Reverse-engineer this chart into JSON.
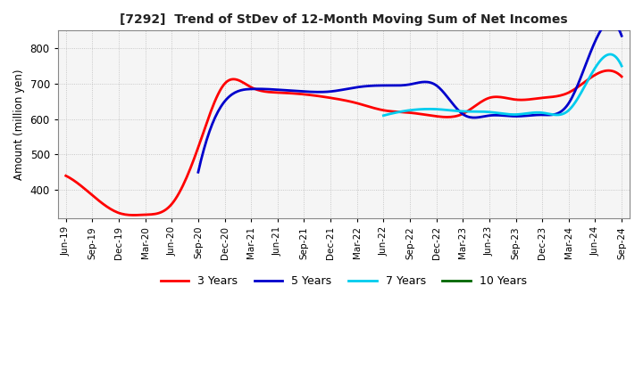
{
  "title": "[7292]  Trend of StDev of 12-Month Moving Sum of Net Incomes",
  "ylabel": "Amount (million yen)",
  "ylim": [
    320,
    850
  ],
  "yticks": [
    400,
    500,
    600,
    700,
    800
  ],
  "background_color": "#ffffff",
  "plot_bg_color": "#f5f5f5",
  "grid_color": "#bbbbbb",
  "line_colors": {
    "3 Years": "#ff0000",
    "5 Years": "#0000cc",
    "7 Years": "#00ccee",
    "10 Years": "#006600"
  },
  "x_labels": [
    "Jun-19",
    "Sep-19",
    "Dec-19",
    "Mar-20",
    "Jun-20",
    "Sep-20",
    "Dec-20",
    "Mar-21",
    "Jun-21",
    "Sep-21",
    "Dec-21",
    "Mar-22",
    "Jun-22",
    "Sep-22",
    "Dec-22",
    "Mar-23",
    "Jun-23",
    "Sep-23",
    "Dec-23",
    "Mar-24",
    "Jun-24",
    "Sep-24"
  ],
  "series": {
    "3 Years": [
      440,
      385,
      335,
      330,
      360,
      520,
      700,
      690,
      675,
      670,
      660,
      645,
      625,
      618,
      608,
      615,
      660,
      655,
      660,
      675,
      725,
      720
    ],
    "5 Years": [
      null,
      null,
      null,
      null,
      null,
      450,
      650,
      685,
      683,
      678,
      678,
      690,
      695,
      698,
      695,
      614,
      610,
      608,
      612,
      645,
      820,
      835
    ],
    "7 Years": [
      null,
      null,
      null,
      null,
      null,
      null,
      null,
      null,
      null,
      null,
      null,
      null,
      610,
      625,
      628,
      622,
      620,
      613,
      618,
      625,
      745,
      750
    ],
    "10 Years": [
      null,
      null,
      null,
      null,
      null,
      null,
      null,
      null,
      null,
      null,
      null,
      null,
      null,
      null,
      null,
      null,
      null,
      null,
      null,
      null,
      null,
      null
    ]
  }
}
